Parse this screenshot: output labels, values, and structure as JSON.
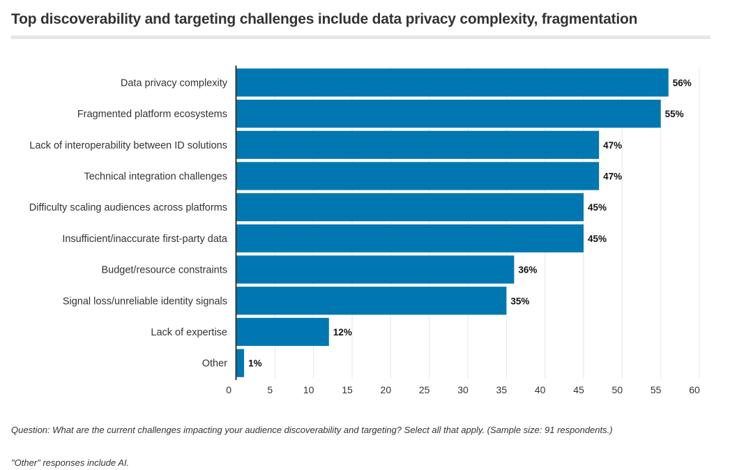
{
  "colors": {
    "bar": "#0077b0",
    "axis": "#333333",
    "grid": "#e6e6e6",
    "title_rule": "#e6e6e6"
  },
  "notes": {
    "question": "Question: What are the current challenges impacting your audience discoverability and targeting? Select all that apply. (Sample size: 91 respondents.)",
    "other": "\"Other\" responses include AI."
  },
  "chart_data": {
    "type": "bar",
    "orientation": "horizontal",
    "title": "Top discoverability and targeting challenges include data privacy complexity, fragmentation",
    "xlabel": "",
    "ylabel": "",
    "xlim": [
      0,
      60
    ],
    "ticks": [
      0,
      5,
      10,
      15,
      20,
      25,
      30,
      35,
      40,
      45,
      50,
      55,
      60
    ],
    "grid": true,
    "legend": "none",
    "categories": [
      "Data privacy complexity",
      "Fragmented platform ecosystems",
      "Lack of interoperability between ID solutions",
      "Technical integration challenges",
      "Difficulty scaling audiences across platforms",
      "Insufficient/inaccurate first-party data",
      "Budget/resource constraints",
      "Signal loss/unreliable identity signals",
      "Lack of expertise",
      "Other"
    ],
    "values": [
      56,
      55,
      47,
      47,
      45,
      45,
      36,
      35,
      12,
      1
    ],
    "value_labels": [
      "56%",
      "55%",
      "47%",
      "47%",
      "45%",
      "45%",
      "36%",
      "35%",
      "12%",
      "1%"
    ]
  }
}
